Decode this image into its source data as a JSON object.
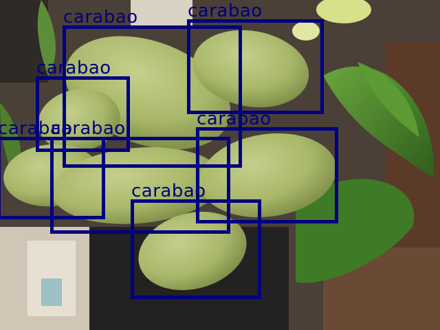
{
  "image": {
    "subject": "photo",
    "colors": {
      "box": "#000080",
      "mango": "#a9b86a",
      "leaf": "#4f8a2c"
    }
  },
  "detections": [
    {
      "label": "carabao"
    },
    {
      "label": "carabao"
    },
    {
      "label": "carabao"
    },
    {
      "label": "carabao"
    },
    {
      "label": "carabao"
    },
    {
      "label": "carabao"
    },
    {
      "label": "carabao"
    }
  ]
}
